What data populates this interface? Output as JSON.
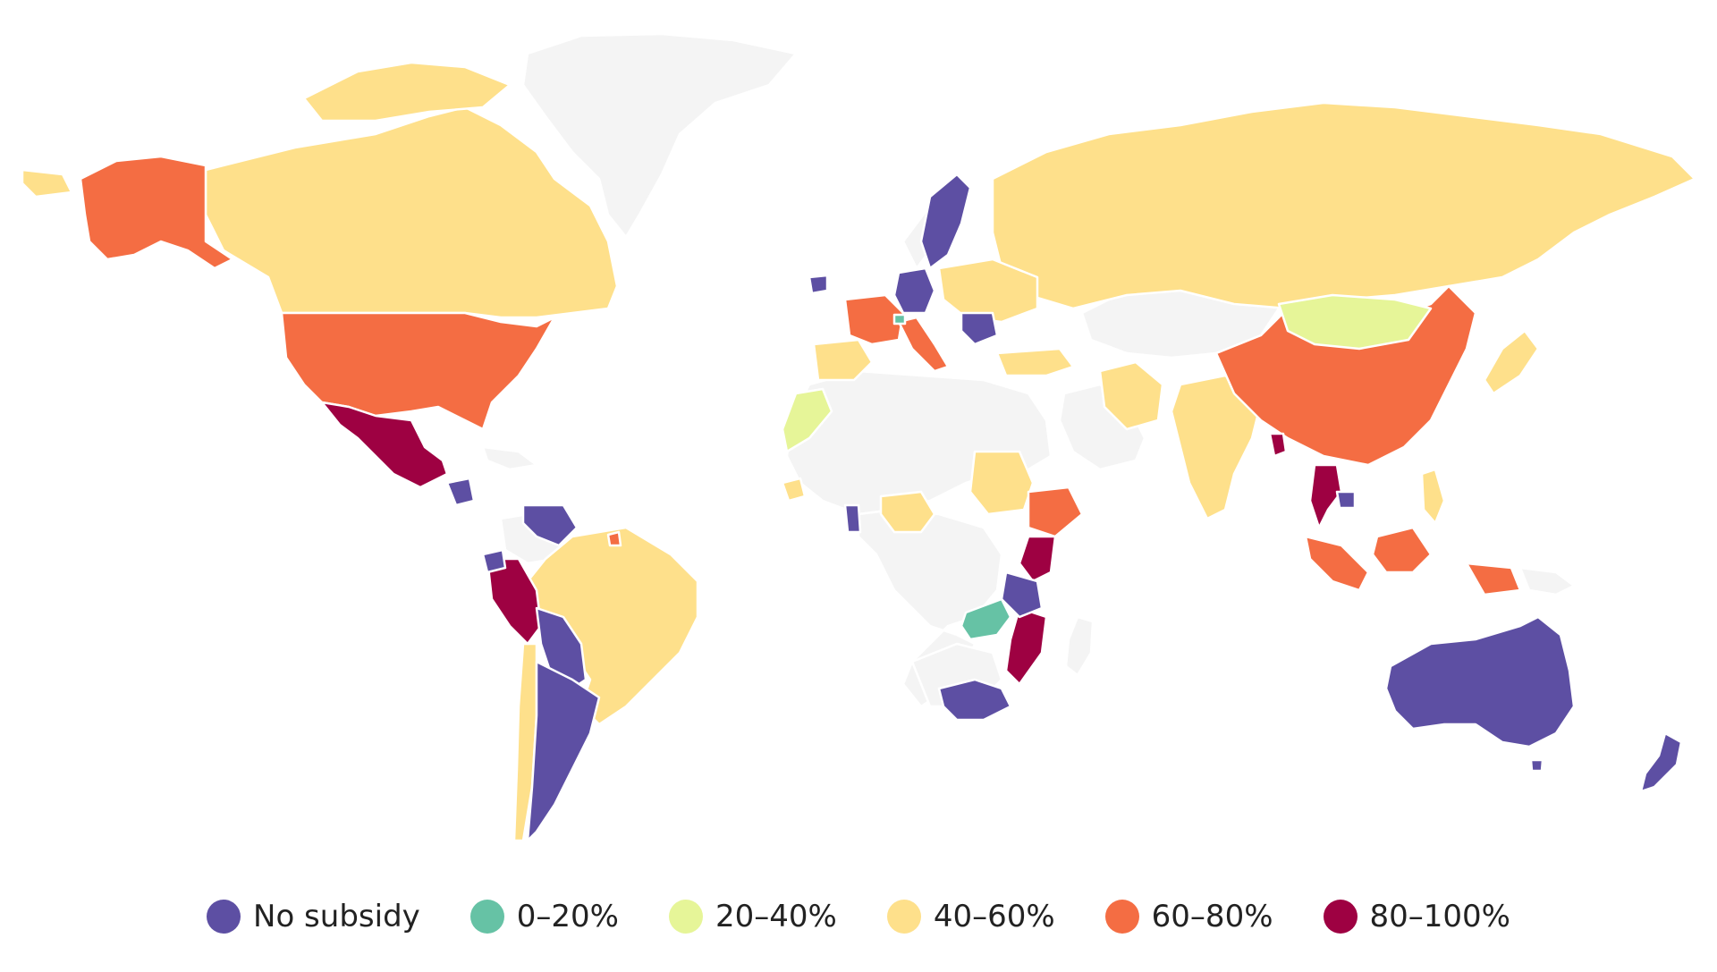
{
  "colors": {
    "no_data": "#f4f4f4",
    "no_subsidy": "#5d4fa3",
    "0_20": "#66c2a5",
    "20_40": "#e6f598",
    "40_60": "#fee08b",
    "60_80": "#f46d43",
    "80_100": "#9e0142"
  },
  "legend": {
    "items": [
      {
        "label": "No subsidy",
        "color": "#5d4fa3"
      },
      {
        "label": "0–20%",
        "color": "#66c2a5"
      },
      {
        "label": "20–40%",
        "color": "#e6f598"
      },
      {
        "label": "40–60%",
        "color": "#fee08b"
      },
      {
        "label": "60–80%",
        "color": "#f46d43"
      },
      {
        "label": "80–100%",
        "color": "#9e0142"
      }
    ]
  }
}
